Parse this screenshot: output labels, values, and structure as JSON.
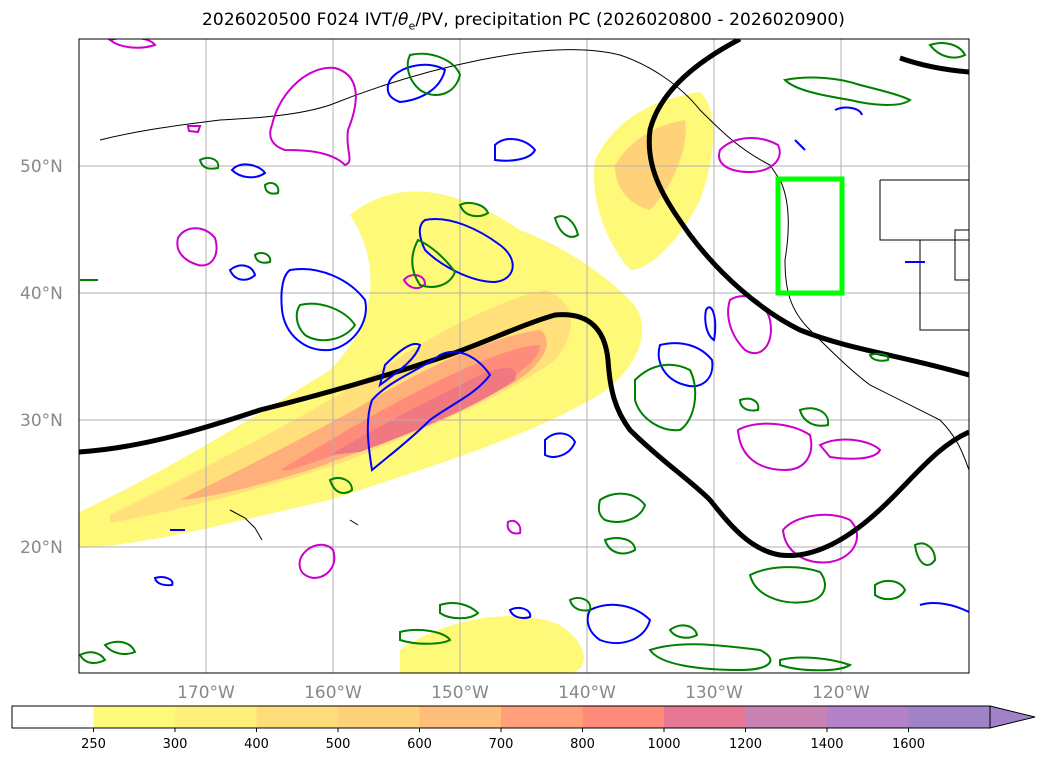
{
  "title": {
    "prefix": "2026020500 F024 IVT/",
    "theta": "θ",
    "theta_sub": "e",
    "suffix": "/PV, precipitation PC (2026020800 - 2026020900)"
  },
  "axes": {
    "lon_labels": [
      "170°W",
      "160°W",
      "150°W",
      "140°W",
      "130°W",
      "120°W"
    ],
    "lat_labels": [
      "50°N",
      "40°N",
      "30°N",
      "20°N"
    ]
  },
  "colorbar": {
    "ticks": [
      "250",
      "300",
      "400",
      "500",
      "600",
      "700",
      "800",
      "1000",
      "1200",
      "1400",
      "1600"
    ],
    "colors": [
      "#ffffff",
      "#fff97a",
      "#fff07a",
      "#ffdc7a",
      "#ffd27a",
      "#ffbe7a",
      "#ffa07a",
      "#ff8c7a",
      "#e67896",
      "#c882b4",
      "#b482c8",
      "#a082c8"
    ]
  },
  "legend_colors": {
    "theta_e_contour": "#000000",
    "pv_contour": "#cc00cc",
    "precip_low": "#0000ff",
    "precip_high": "#008000",
    "box": "#00ff00"
  }
}
